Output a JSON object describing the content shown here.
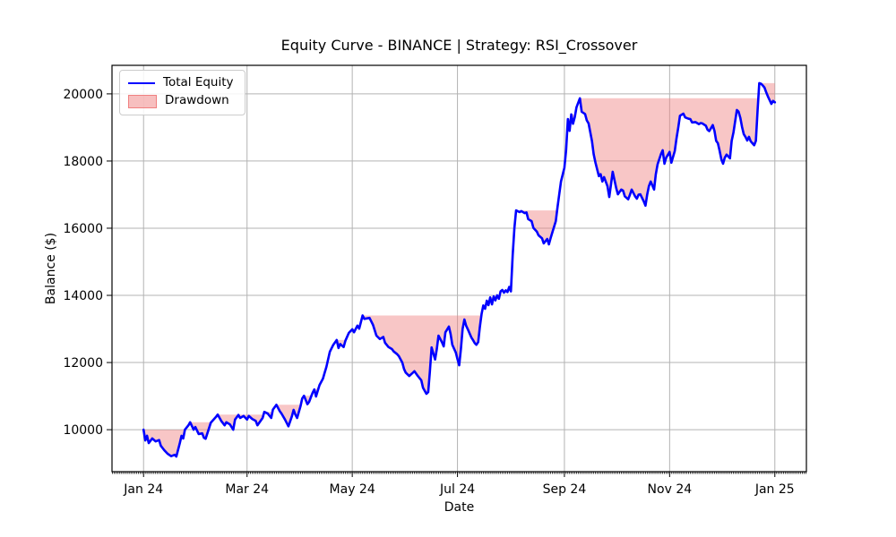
{
  "chart_data": {
    "type": "line",
    "title": "Equity Curve - BINANCE | Strategy: RSI_Crossover",
    "xlabel": "Date",
    "ylabel": "Balance ($)",
    "legend_position": "upper left",
    "legend": [
      {
        "label": "Total Equity",
        "swatch": "line",
        "color": "#0000ff"
      },
      {
        "label": "Drawdown",
        "swatch": "patch",
        "fill": "rgba(240,128,128,0.5)",
        "edge": "#f08080"
      }
    ],
    "grid": true,
    "grid_color": "#b3b3b3",
    "frame_color": "#000000",
    "line_color": "#0000ff",
    "line_width": 2.6,
    "drawdown_fill_color": "#f08080",
    "drawdown_fill_opacity": 0.45,
    "drawdown_rule": "area between running maximum of Total Equity and the curve",
    "x_unit": "days since 2024-01-01",
    "xlim_days": [
      -18.3,
      384.3
    ],
    "ylim": [
      8750,
      20850
    ],
    "y_ticks": [
      10000,
      12000,
      14000,
      16000,
      18000,
      20000
    ],
    "x_ticks": [
      {
        "day": 0,
        "label": "Jan 24"
      },
      {
        "day": 60,
        "label": "Mar 24"
      },
      {
        "day": 121,
        "label": "May 24"
      },
      {
        "day": 182,
        "label": "Jul 24"
      },
      {
        "day": 244,
        "label": "Sep 24"
      },
      {
        "day": 305,
        "label": "Nov 24"
      },
      {
        "day": 366,
        "label": "Jan 25"
      }
    ],
    "x_minor_tick_every_days": 1,
    "series": [
      {
        "name": "Total Equity",
        "points": [
          [
            0,
            10000
          ],
          [
            1,
            9680
          ],
          [
            2,
            9820
          ],
          [
            3,
            9600
          ],
          [
            5,
            9740
          ],
          [
            7,
            9650
          ],
          [
            9,
            9690
          ],
          [
            10,
            9520
          ],
          [
            12,
            9390
          ],
          [
            14,
            9280
          ],
          [
            16,
            9210
          ],
          [
            18,
            9250
          ],
          [
            19,
            9200
          ],
          [
            21,
            9600
          ],
          [
            22,
            9820
          ],
          [
            23,
            9740
          ],
          [
            24,
            10000
          ],
          [
            26,
            10130
          ],
          [
            27,
            10220
          ],
          [
            29,
            10000
          ],
          [
            30,
            10080
          ],
          [
            32,
            9870
          ],
          [
            34,
            9890
          ],
          [
            35,
            9760
          ],
          [
            36,
            9730
          ],
          [
            39,
            10210
          ],
          [
            42,
            10380
          ],
          [
            43,
            10450
          ],
          [
            45,
            10260
          ],
          [
            47,
            10130
          ],
          [
            48,
            10220
          ],
          [
            50,
            10160
          ],
          [
            52,
            10000
          ],
          [
            53,
            10300
          ],
          [
            55,
            10440
          ],
          [
            56,
            10350
          ],
          [
            58,
            10410
          ],
          [
            60,
            10300
          ],
          [
            61,
            10410
          ],
          [
            63,
            10320
          ],
          [
            65,
            10260
          ],
          [
            66,
            10130
          ],
          [
            69,
            10350
          ],
          [
            70,
            10530
          ],
          [
            72,
            10480
          ],
          [
            74,
            10350
          ],
          [
            75,
            10600
          ],
          [
            77,
            10740
          ],
          [
            79,
            10550
          ],
          [
            80,
            10480
          ],
          [
            82,
            10300
          ],
          [
            84,
            10100
          ],
          [
            86,
            10400
          ],
          [
            87,
            10590
          ],
          [
            88,
            10450
          ],
          [
            89,
            10350
          ],
          [
            91,
            10700
          ],
          [
            92,
            10930
          ],
          [
            93,
            11010
          ],
          [
            95,
            10760
          ],
          [
            96,
            10830
          ],
          [
            98,
            11100
          ],
          [
            99,
            11200
          ],
          [
            100,
            10990
          ],
          [
            102,
            11330
          ],
          [
            104,
            11520
          ],
          [
            105,
            11700
          ],
          [
            106,
            11870
          ],
          [
            108,
            12320
          ],
          [
            110,
            12530
          ],
          [
            112,
            12670
          ],
          [
            113,
            12430
          ],
          [
            114,
            12550
          ],
          [
            116,
            12460
          ],
          [
            117,
            12650
          ],
          [
            119,
            12880
          ],
          [
            121,
            12990
          ],
          [
            122,
            12900
          ],
          [
            124,
            13100
          ],
          [
            125,
            13010
          ],
          [
            127,
            13400
          ],
          [
            128,
            13300
          ],
          [
            131,
            13330
          ],
          [
            133,
            13120
          ],
          [
            135,
            12800
          ],
          [
            137,
            12700
          ],
          [
            139,
            12760
          ],
          [
            140,
            12590
          ],
          [
            142,
            12460
          ],
          [
            144,
            12400
          ],
          [
            145,
            12330
          ],
          [
            147,
            12250
          ],
          [
            148,
            12190
          ],
          [
            150,
            12000
          ],
          [
            151,
            11810
          ],
          [
            152,
            11700
          ],
          [
            154,
            11600
          ],
          [
            156,
            11690
          ],
          [
            157,
            11740
          ],
          [
            159,
            11600
          ],
          [
            161,
            11470
          ],
          [
            162,
            11250
          ],
          [
            164,
            11070
          ],
          [
            165,
            11120
          ],
          [
            166,
            11740
          ],
          [
            167,
            12450
          ],
          [
            169,
            12090
          ],
          [
            170,
            12400
          ],
          [
            171,
            12800
          ],
          [
            173,
            12600
          ],
          [
            174,
            12480
          ],
          [
            175,
            12900
          ],
          [
            177,
            13070
          ],
          [
            178,
            12850
          ],
          [
            179,
            12530
          ],
          [
            181,
            12300
          ],
          [
            182,
            12100
          ],
          [
            183,
            11920
          ],
          [
            184,
            12400
          ],
          [
            185,
            13000
          ],
          [
            186,
            13280
          ],
          [
            187,
            13100
          ],
          [
            188,
            12990
          ],
          [
            190,
            12750
          ],
          [
            191,
            12670
          ],
          [
            192,
            12580
          ],
          [
            193,
            12530
          ],
          [
            194,
            12610
          ],
          [
            195,
            13070
          ],
          [
            196,
            13450
          ],
          [
            197,
            13700
          ],
          [
            198,
            13600
          ],
          [
            199,
            13840
          ],
          [
            200,
            13710
          ],
          [
            201,
            13940
          ],
          [
            202,
            13730
          ],
          [
            203,
            13970
          ],
          [
            204,
            13850
          ],
          [
            205,
            14000
          ],
          [
            206,
            13900
          ],
          [
            207,
            14120
          ],
          [
            208,
            14160
          ],
          [
            209,
            14080
          ],
          [
            210,
            14150
          ],
          [
            211,
            14100
          ],
          [
            212,
            14250
          ],
          [
            213,
            14120
          ],
          [
            214,
            15200
          ],
          [
            215,
            16000
          ],
          [
            216,
            16530
          ],
          [
            218,
            16480
          ],
          [
            219,
            16510
          ],
          [
            221,
            16450
          ],
          [
            222,
            16470
          ],
          [
            223,
            16270
          ],
          [
            225,
            16210
          ],
          [
            226,
            16010
          ],
          [
            228,
            15900
          ],
          [
            229,
            15790
          ],
          [
            231,
            15700
          ],
          [
            232,
            15550
          ],
          [
            234,
            15680
          ],
          [
            235,
            15520
          ],
          [
            236,
            15700
          ],
          [
            237,
            15870
          ],
          [
            239,
            16210
          ],
          [
            240,
            16620
          ],
          [
            241,
            17000
          ],
          [
            242,
            17390
          ],
          [
            244,
            17800
          ],
          [
            245,
            18320
          ],
          [
            246,
            19250
          ],
          [
            247,
            18900
          ],
          [
            248,
            19390
          ],
          [
            249,
            19110
          ],
          [
            250,
            19310
          ],
          [
            251,
            19600
          ],
          [
            253,
            19870
          ],
          [
            254,
            19470
          ],
          [
            256,
            19400
          ],
          [
            257,
            19210
          ],
          [
            258,
            19120
          ],
          [
            260,
            18590
          ],
          [
            261,
            18200
          ],
          [
            262,
            17950
          ],
          [
            264,
            17550
          ],
          [
            265,
            17610
          ],
          [
            266,
            17390
          ],
          [
            267,
            17520
          ],
          [
            269,
            17250
          ],
          [
            270,
            16930
          ],
          [
            271,
            17300
          ],
          [
            272,
            17680
          ],
          [
            274,
            17200
          ],
          [
            275,
            17010
          ],
          [
            277,
            17150
          ],
          [
            278,
            17120
          ],
          [
            279,
            16950
          ],
          [
            281,
            16860
          ],
          [
            282,
            17000
          ],
          [
            283,
            17150
          ],
          [
            285,
            16950
          ],
          [
            286,
            16880
          ],
          [
            287,
            17000
          ],
          [
            288,
            17010
          ],
          [
            290,
            16800
          ],
          [
            291,
            16670
          ],
          [
            292,
            17000
          ],
          [
            293,
            17250
          ],
          [
            294,
            17390
          ],
          [
            296,
            17150
          ],
          [
            297,
            17600
          ],
          [
            298,
            17900
          ],
          [
            300,
            18210
          ],
          [
            301,
            18320
          ],
          [
            302,
            17920
          ],
          [
            303,
            18100
          ],
          [
            305,
            18270
          ],
          [
            306,
            17950
          ],
          [
            308,
            18300
          ],
          [
            309,
            18670
          ],
          [
            310,
            19000
          ],
          [
            311,
            19350
          ],
          [
            313,
            19410
          ],
          [
            314,
            19300
          ],
          [
            316,
            19260
          ],
          [
            317,
            19250
          ],
          [
            318,
            19150
          ],
          [
            320,
            19160
          ],
          [
            322,
            19100
          ],
          [
            323,
            19130
          ],
          [
            324,
            19120
          ],
          [
            326,
            19050
          ],
          [
            327,
            18930
          ],
          [
            328,
            18890
          ],
          [
            330,
            19070
          ],
          [
            331,
            18900
          ],
          [
            332,
            18600
          ],
          [
            333,
            18530
          ],
          [
            334,
            18300
          ],
          [
            335,
            18050
          ],
          [
            336,
            17920
          ],
          [
            337,
            18100
          ],
          [
            338,
            18190
          ],
          [
            340,
            18080
          ],
          [
            341,
            18600
          ],
          [
            342,
            18850
          ],
          [
            344,
            19520
          ],
          [
            345,
            19470
          ],
          [
            346,
            19280
          ],
          [
            347,
            19010
          ],
          [
            348,
            18800
          ],
          [
            349,
            18720
          ],
          [
            350,
            18610
          ],
          [
            351,
            18720
          ],
          [
            352,
            18590
          ],
          [
            353,
            18530
          ],
          [
            354,
            18470
          ],
          [
            355,
            18600
          ],
          [
            356,
            19500
          ],
          [
            357,
            20320
          ],
          [
            358,
            20300
          ],
          [
            359,
            20250
          ],
          [
            360,
            20190
          ],
          [
            361,
            20050
          ],
          [
            362,
            19920
          ],
          [
            363,
            19810
          ],
          [
            364,
            19700
          ],
          [
            365,
            19790
          ],
          [
            366,
            19750
          ]
        ]
      }
    ]
  }
}
